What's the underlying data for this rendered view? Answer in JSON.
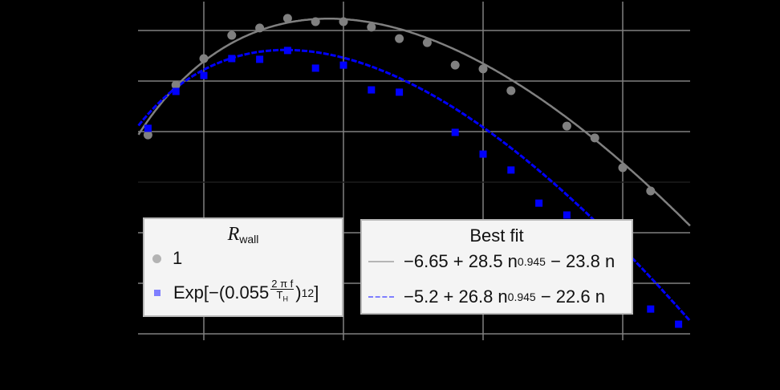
{
  "chart_data": {
    "type": "scatter",
    "title": "",
    "xlabel": "",
    "ylabel": "",
    "xlim": [
      2.66,
      22.45
    ],
    "ylim": [
      -6.3,
      7.2
    ],
    "x_gridlines": [
      5,
      10,
      15,
      20
    ],
    "y_gridlines": [
      -6,
      -4,
      -2,
      0,
      2,
      4,
      6
    ],
    "grid": true,
    "background": "#000000",
    "series": [
      {
        "name": "1",
        "kind": "points",
        "marker": "circle",
        "color": "#808080",
        "x": [
          3,
          4,
          5,
          6,
          7,
          8,
          9,
          10,
          11,
          12,
          13,
          14,
          15,
          16,
          18,
          19,
          20,
          21
        ],
        "y": [
          1.87,
          3.84,
          4.89,
          5.81,
          6.1,
          6.48,
          6.35,
          6.35,
          6.13,
          5.68,
          5.52,
          4.63,
          4.48,
          3.62,
          2.22,
          1.75,
          0.57,
          -0.35
        ]
      },
      {
        "name": "Exp[-(0.055 2πf/T_H)^12]",
        "kind": "points",
        "marker": "square",
        "color": "#0000ff",
        "x": [
          3,
          4,
          5,
          6,
          7,
          8,
          9,
          10,
          11,
          12,
          14,
          15,
          16,
          17,
          18,
          21,
          22
        ],
        "y": [
          2.13,
          3.59,
          4.22,
          4.89,
          4.86,
          5.21,
          4.51,
          4.63,
          3.65,
          3.56,
          1.97,
          1.11,
          0.48,
          -0.83,
          -1.3,
          -5.02,
          -5.62
        ]
      },
      {
        "name": "−6.65 + 28.5 n^0.945 − 23.8 n",
        "kind": "fit",
        "style": "solid",
        "color": "#808080",
        "coef": {
          "a": -6.65,
          "b": 28.5,
          "p": 0.945,
          "c": -23.8
        }
      },
      {
        "name": "−5.2 + 26.8 n^0.945 − 22.6 n",
        "kind": "fit",
        "style": "dashed",
        "color": "#0000ff",
        "coef": {
          "a": -5.2,
          "b": 26.8,
          "p": 0.945,
          "c": -22.6
        }
      }
    ],
    "legends": [
      {
        "title": "R_wall",
        "entries": [
          "1",
          "Exp[−(0.055 2πf/T_H)^12]"
        ],
        "position": "lower-left-center"
      },
      {
        "title": "Best fit",
        "entries": [
          "−6.65 + 28.5 n^0.945 − 23.8 n",
          "−5.2 + 26.8 n^0.945 − 22.6 n"
        ],
        "position": "lower-center-right"
      }
    ]
  },
  "legend_left": {
    "title_symbol": "R",
    "title_sub": "wall",
    "entry1": "1",
    "entry2_prefix": "Exp[−(0.055",
    "entry2_num": "2 π f",
    "entry2_den_main": "T",
    "entry2_den_sub": "H",
    "entry2_close": ")",
    "entry2_exp": "12",
    "entry2_end": "]"
  },
  "legend_right": {
    "title": "Best fit",
    "fit1_a": "−6.65 + 28.5 n",
    "fit1_exp": "0.945",
    "fit1_b": " − 23.8 n",
    "fit2_a": "−5.2 + 26.8 n",
    "fit2_exp": "0.945",
    "fit2_b": " − 22.6 n"
  }
}
